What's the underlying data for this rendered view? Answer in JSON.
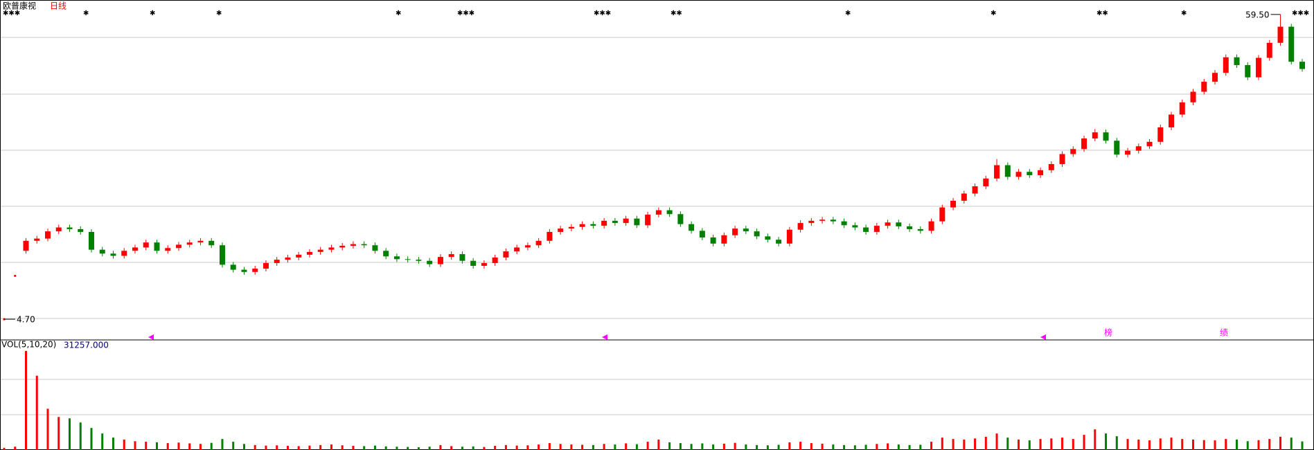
{
  "chart_data": {
    "type": "candlestick",
    "title": "欧普康视",
    "period": "日线",
    "volume_title": "VOL(5,10,20)",
    "volume_label": "31257.000",
    "events": [
      "榜",
      "绩"
    ],
    "up_color": "#ff0000",
    "down_color": "#008000",
    "ylim": [
      1.1,
      62.1
    ],
    "vlim": [
      0,
      400000
    ],
    "annotations": [
      {
        "value": 59.5,
        "label": "59.50"
      },
      {
        "value": 4.7,
        "label": "4.70"
      }
    ],
    "open": [
      4.7,
      12.5,
      17.0,
      18.8,
      19.2,
      20.5,
      21.2,
      20.9,
      20.4,
      17.2,
      16.5,
      16.1,
      17.0,
      17.6,
      18.5,
      17.0,
      17.5,
      18.1,
      18.5,
      18.8,
      18.0,
      14.5,
      13.6,
      13.2,
      13.8,
      14.8,
      15.4,
      15.8,
      16.3,
      16.8,
      17.2,
      17.6,
      17.9,
      18.2,
      18.0,
      17.0,
      16.0,
      15.5,
      15.4,
      15.2,
      14.6,
      15.9,
      16.4,
      15.2,
      14.3,
      14.8,
      15.8,
      16.9,
      17.6,
      18.0,
      18.8,
      20.4,
      21.0,
      21.3,
      21.8,
      21.5,
      22.4,
      22.0,
      22.8,
      21.6,
      23.5,
      24.3,
      23.6,
      21.8,
      20.6,
      19.4,
      18.3,
      19.8,
      21.0,
      20.5,
      19.6,
      19.0,
      18.3,
      20.8,
      22.0,
      22.4,
      22.6,
      22.3,
      21.6,
      21.2,
      20.4,
      21.5,
      22.1,
      21.4,
      20.9,
      20.6,
      22.3,
      24.8,
      26.0,
      27.3,
      28.6,
      30.0,
      32.4,
      30.3,
      31.2,
      30.6,
      31.5,
      32.6,
      34.4,
      35.3,
      37.2,
      38.3,
      36.8,
      34.3,
      35.0,
      35.8,
      36.6,
      39.2,
      41.5,
      43.7,
      45.6,
      47.4,
      49.0,
      51.8,
      50.4,
      48.2,
      51.7,
      54.4,
      57.3,
      51.0
    ],
    "high": [
      4.7,
      12.5,
      19.3,
      19.7,
      21.0,
      21.7,
      21.7,
      21.4,
      20.9,
      17.7,
      17.0,
      17.5,
      18.1,
      19.0,
      19.0,
      18.0,
      18.6,
      19.0,
      19.3,
      19.3,
      18.5,
      15.0,
      14.1,
      14.3,
      15.3,
      15.9,
      16.3,
      16.8,
      17.3,
      17.7,
      18.1,
      18.4,
      18.7,
      18.7,
      18.5,
      17.5,
      16.5,
      16.0,
      15.9,
      15.7,
      16.4,
      16.9,
      16.9,
      15.7,
      15.3,
      16.3,
      17.4,
      18.1,
      18.5,
      19.3,
      20.9,
      21.5,
      21.8,
      22.3,
      22.3,
      22.9,
      22.9,
      23.3,
      23.3,
      24.0,
      24.8,
      24.8,
      24.1,
      22.3,
      21.1,
      19.9,
      20.3,
      21.5,
      21.5,
      21.0,
      20.1,
      19.5,
      21.3,
      22.5,
      22.9,
      23.1,
      23.1,
      22.8,
      22.1,
      21.7,
      22.0,
      22.6,
      22.6,
      21.9,
      21.4,
      22.8,
      25.3,
      26.5,
      27.8,
      29.1,
      30.5,
      33.5,
      32.9,
      31.7,
      31.7,
      32.0,
      33.1,
      34.9,
      35.8,
      37.7,
      38.9,
      38.8,
      37.3,
      35.5,
      36.3,
      37.1,
      39.7,
      42.0,
      44.2,
      46.1,
      47.9,
      49.5,
      52.3,
      52.3,
      50.9,
      52.2,
      54.9,
      59.5,
      57.8,
      51.5
    ],
    "low": [
      4.7,
      12.5,
      16.5,
      18.3,
      18.7,
      20.0,
      20.4,
      19.9,
      16.7,
      16.0,
      15.6,
      15.6,
      16.5,
      17.1,
      16.5,
      16.5,
      17.0,
      17.6,
      18.0,
      17.5,
      14.0,
      13.1,
      12.7,
      12.7,
      13.3,
      14.3,
      14.9,
      15.3,
      15.8,
      16.3,
      16.7,
      17.1,
      17.4,
      17.5,
      16.5,
      15.5,
      15.0,
      14.9,
      14.7,
      14.1,
      14.1,
      15.4,
      14.7,
      13.8,
      13.8,
      14.3,
      15.3,
      16.4,
      17.1,
      17.5,
      18.3,
      19.9,
      20.5,
      20.8,
      21.0,
      21.0,
      21.5,
      21.5,
      21.1,
      21.1,
      23.0,
      23.1,
      21.3,
      20.1,
      18.9,
      17.8,
      17.8,
      19.3,
      20.0,
      19.1,
      18.5,
      17.8,
      17.8,
      20.3,
      21.5,
      21.9,
      21.8,
      21.1,
      20.7,
      19.9,
      19.9,
      21.0,
      20.9,
      20.4,
      20.1,
      20.1,
      21.8,
      24.3,
      25.5,
      26.8,
      28.1,
      29.5,
      29.8,
      29.8,
      30.1,
      30.1,
      31.0,
      32.1,
      33.9,
      34.8,
      36.7,
      36.3,
      33.8,
      33.8,
      34.5,
      35.3,
      36.1,
      38.7,
      41.0,
      43.2,
      45.1,
      46.9,
      48.5,
      49.9,
      47.7,
      47.7,
      51.2,
      53.9,
      50.5,
      49.2
    ],
    "close": [
      4.7,
      12.5,
      18.8,
      19.2,
      20.5,
      21.2,
      20.9,
      20.4,
      17.2,
      16.5,
      16.1,
      17.0,
      17.6,
      18.5,
      17.0,
      17.5,
      18.1,
      18.5,
      18.8,
      18.0,
      14.5,
      13.6,
      13.2,
      13.8,
      14.8,
      15.4,
      15.8,
      16.3,
      16.8,
      17.2,
      17.6,
      17.9,
      18.2,
      18.0,
      17.0,
      16.0,
      15.5,
      15.4,
      15.2,
      14.6,
      15.9,
      16.4,
      15.2,
      14.3,
      14.8,
      15.8,
      16.9,
      17.6,
      18.0,
      18.8,
      20.4,
      21.0,
      21.3,
      21.8,
      21.5,
      22.4,
      22.0,
      22.8,
      21.6,
      23.5,
      24.3,
      23.6,
      21.8,
      20.6,
      19.4,
      18.3,
      19.8,
      21.0,
      20.5,
      19.6,
      19.0,
      18.3,
      20.8,
      22.0,
      22.4,
      22.6,
      22.3,
      21.6,
      21.2,
      20.4,
      21.5,
      22.1,
      21.4,
      20.9,
      20.6,
      22.3,
      24.8,
      26.0,
      27.3,
      28.6,
      30.0,
      32.4,
      30.3,
      31.2,
      30.6,
      31.5,
      32.6,
      34.4,
      35.3,
      37.2,
      38.3,
      36.8,
      34.3,
      35.0,
      35.8,
      36.6,
      39.2,
      41.5,
      43.7,
      45.6,
      47.4,
      49.0,
      51.8,
      50.4,
      48.2,
      51.7,
      54.4,
      57.3,
      51.0,
      49.7
    ],
    "volume": [
      8000,
      12000,
      360000,
      270000,
      150000,
      120000,
      115000,
      100000,
      80000,
      60000,
      45000,
      38000,
      32000,
      30000,
      28000,
      25000,
      27000,
      24000,
      22000,
      26000,
      40000,
      30000,
      22000,
      18000,
      16000,
      17000,
      15000,
      14000,
      16000,
      18000,
      20000,
      17000,
      15000,
      14000,
      16000,
      13000,
      12000,
      11000,
      10000,
      12000,
      18000,
      14000,
      12000,
      13000,
      11000,
      15000,
      18000,
      16000,
      17000,
      20000,
      25000,
      22000,
      20000,
      19000,
      18000,
      22000,
      20000,
      24000,
      21000,
      30000,
      38000,
      28000,
      25000,
      22000,
      24000,
      20000,
      23000,
      26000,
      20000,
      18000,
      17000,
      19000,
      28000,
      30000,
      25000,
      23000,
      20000,
      18000,
      17000,
      19000,
      22000,
      24000,
      20000,
      18000,
      19000,
      30000,
      45000,
      40000,
      38000,
      42000,
      48000,
      60000,
      45000,
      38000,
      35000,
      40000,
      42000,
      45000,
      40000,
      55000,
      75000,
      60000,
      50000,
      40000,
      38000,
      35000,
      42000,
      45000,
      40000,
      38000,
      36000,
      35000,
      40000,
      38000,
      32000,
      36000,
      40000,
      48000,
      45000,
      31257
    ]
  }
}
